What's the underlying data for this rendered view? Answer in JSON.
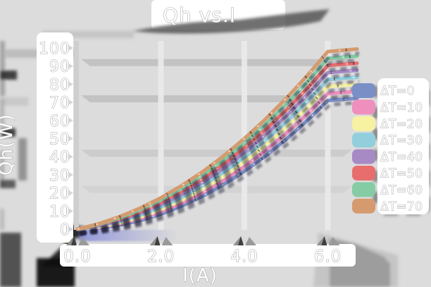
{
  "window": {
    "background": "#dcdcdc"
  },
  "chart_data": {
    "type": "line",
    "title": "Qh vs.I",
    "xlabel": "I(A)",
    "ylabel": "Qh(W)",
    "xlim": [
      0,
      6.7
    ],
    "ylim": [
      0,
      100
    ],
    "grid": "horizontal-bands",
    "grid_bands": [
      90,
      70,
      40,
      20
    ],
    "legend_position": "right",
    "xticks": {
      "values": [
        0,
        2,
        4,
        6
      ],
      "labels": [
        "0.0",
        "2.0",
        "4.0",
        "6.0"
      ]
    },
    "yticks": {
      "values": [
        0,
        10,
        20,
        30,
        40,
        50,
        60,
        70,
        80,
        90,
        100
      ],
      "labels": [
        "0",
        "10",
        "20",
        "30",
        "40",
        "50",
        "60",
        "70",
        "80",
        "90",
        "100"
      ]
    },
    "x": [
      0,
      0.5,
      1,
      1.5,
      2,
      2.5,
      3,
      3.5,
      4,
      4.5,
      5,
      5.5,
      6,
      6.7
    ],
    "series": [
      {
        "name": "ΔT=0",
        "color": "#7B8FC7",
        "values": [
          0,
          0.6,
          2.2,
          4.8,
          8.3,
          12.8,
          18.2,
          24.6,
          32.0,
          40.3,
          49.6,
          59.8,
          71.0,
          72.2
        ]
      },
      {
        "name": "ΔT=10",
        "color": "#EE8FBE",
        "values": [
          0,
          1.0,
          2.9,
          5.8,
          9.6,
          14.4,
          20.2,
          26.9,
          34.5,
          43.2,
          52.8,
          63.3,
          74.8,
          76.0
        ]
      },
      {
        "name": "ΔT=20",
        "color": "#F6F2A2",
        "values": [
          0,
          1.3,
          3.5,
          6.7,
          10.9,
          16.0,
          22.1,
          29.1,
          37.2,
          46.1,
          56.0,
          66.9,
          78.7,
          80.0
        ]
      },
      {
        "name": "ΔT=30",
        "color": "#92CFDC",
        "values": [
          0,
          1.6,
          4.2,
          7.7,
          12.2,
          17.6,
          24.0,
          31.4,
          39.7,
          49.0,
          59.2,
          70.4,
          82.6,
          83.8
        ]
      },
      {
        "name": "ΔT=40",
        "color": "#A78AC4",
        "values": [
          0,
          1.9,
          4.8,
          8.7,
          13.5,
          19.2,
          25.9,
          33.6,
          42.3,
          51.9,
          62.4,
          74.0,
          86.4,
          87.7
        ]
      },
      {
        "name": "ΔT=50",
        "color": "#E86E6E",
        "values": [
          0,
          2.3,
          5.5,
          9.6,
          14.8,
          20.9,
          27.9,
          35.9,
          44.9,
          54.8,
          65.7,
          77.5,
          90.3,
          91.6
        ]
      },
      {
        "name": "ΔT=60",
        "color": "#85CBA3",
        "values": [
          0,
          2.6,
          6.1,
          10.6,
          16.1,
          22.5,
          29.8,
          38.1,
          47.4,
          57.7,
          68.9,
          81.0,
          94.2,
          95.5
        ]
      },
      {
        "name": "ΔT=70",
        "color": "#D59A6E",
        "values": [
          0,
          2.9,
          6.8,
          11.6,
          17.3,
          24.1,
          31.7,
          40.4,
          50.0,
          60.6,
          72.1,
          84.6,
          98.0,
          99.4
        ]
      }
    ]
  }
}
